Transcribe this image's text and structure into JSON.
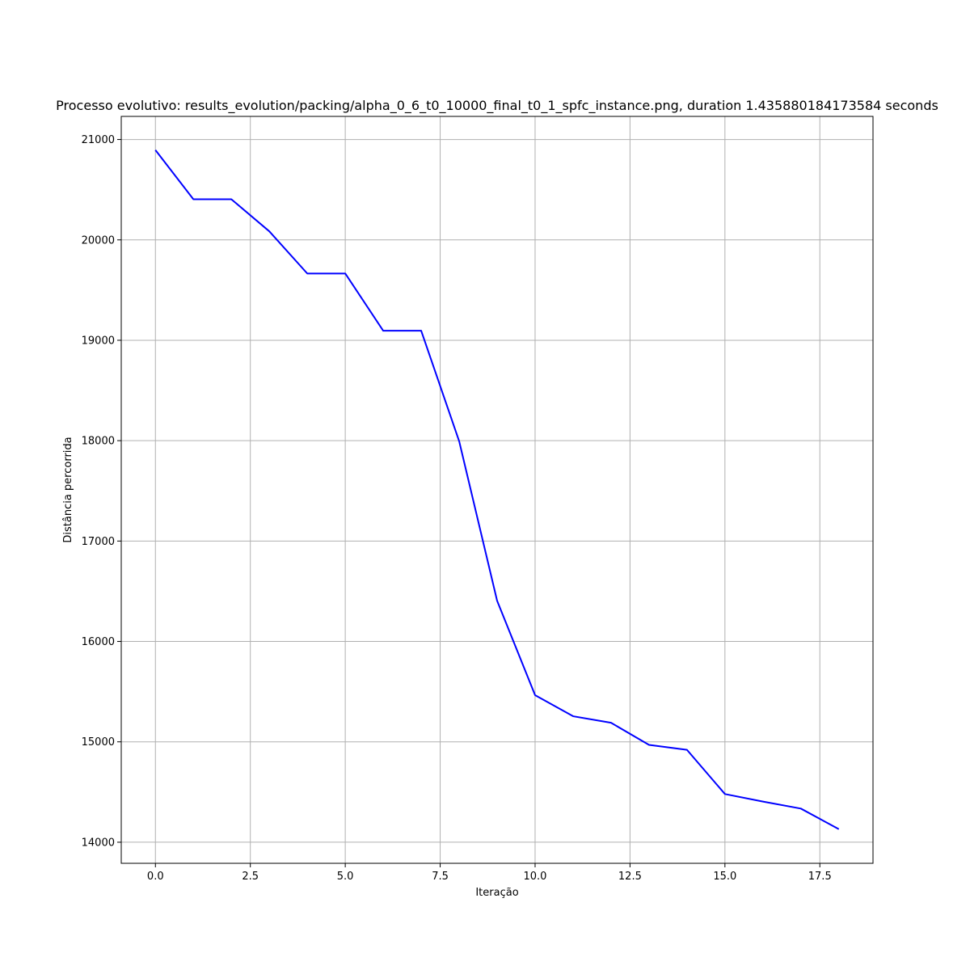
{
  "chart_data": {
    "type": "line",
    "title": "Processo evolutivo: results_evolution/packing/alpha_0_6_t0_10000_final_t0_1_spfc_instance.png, duration 1.435880184173584 seconds",
    "xlabel": "Iteração",
    "ylabel": "Distância percorrida",
    "xlim": [
      -0.9,
      18.9
    ],
    "ylim": [
      13790,
      21230
    ],
    "xticks": [
      0.0,
      2.5,
      5.0,
      7.5,
      10.0,
      12.5,
      15.0,
      17.5
    ],
    "xtick_labels": [
      "0.0",
      "2.5",
      "5.0",
      "7.5",
      "10.0",
      "12.5",
      "15.0",
      "17.5"
    ],
    "yticks": [
      14000,
      15000,
      16000,
      17000,
      18000,
      19000,
      20000,
      21000
    ],
    "ytick_labels": [
      "14000",
      "15000",
      "16000",
      "17000",
      "18000",
      "19000",
      "20000",
      "21000"
    ],
    "grid": true,
    "series": [
      {
        "color": "#0000ff",
        "x": [
          0,
          1,
          2,
          3,
          4,
          5,
          6,
          7,
          8,
          9,
          10,
          11,
          12,
          13,
          14,
          15,
          16,
          17,
          18
        ],
        "y": [
          20895,
          20405,
          20405,
          20085,
          19665,
          19665,
          19095,
          19095,
          17995,
          16405,
          15465,
          15255,
          15190,
          14970,
          14920,
          14480,
          14405,
          14335,
          14130
        ]
      }
    ]
  }
}
